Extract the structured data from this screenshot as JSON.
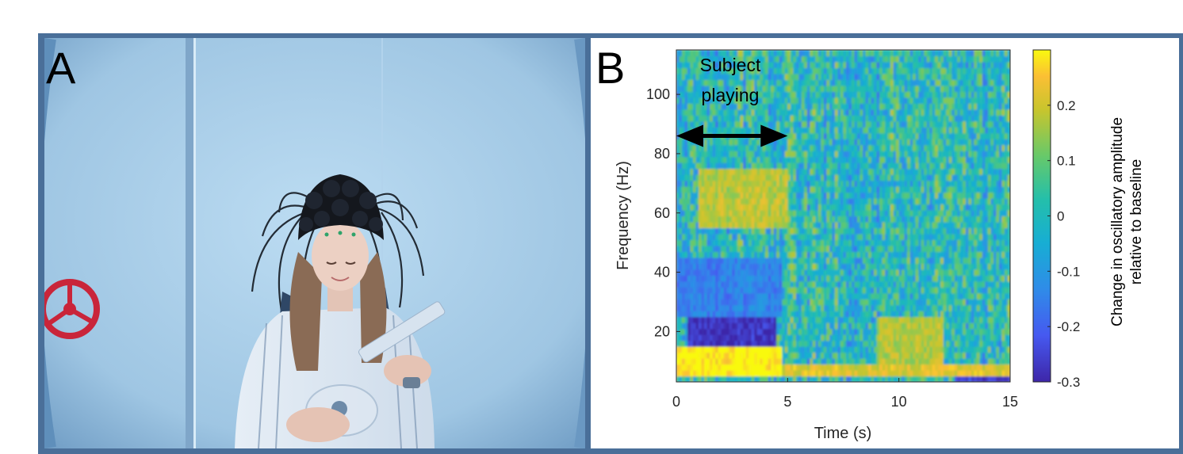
{
  "figure": {
    "panel_a": {
      "letter": "A"
    },
    "panel_b": {
      "letter": "B",
      "annotation": [
        "Subject",
        "playing"
      ]
    }
  },
  "chart_data": {
    "type": "heatmap",
    "title": "",
    "xlabel": "Time (s)",
    "ylabel": "Frequency (Hz)",
    "xlim": [
      0,
      15
    ],
    "ylim": [
      3,
      115
    ],
    "xticks": [
      0,
      5,
      10,
      15
    ],
    "yticks": [
      20,
      40,
      60,
      80,
      100
    ],
    "colormap": "parula",
    "colorbar": {
      "label_lines": [
        "Change in oscillatory amplitude",
        "relative to baseline"
      ],
      "range": [
        -0.3,
        0.3
      ],
      "ticks": [
        0.2,
        0.1,
        0,
        -0.1,
        -0.2,
        -0.3
      ],
      "tick_labels": [
        "0.2",
        "0.1",
        "0",
        "-0.1",
        "-0.2",
        "-0.3"
      ]
    },
    "annotation": {
      "text": "Subject playing",
      "arrow_from_s": 0,
      "arrow_to_s": 5,
      "arrow_at_hz": 86
    },
    "regions": [
      {
        "t0": 0,
        "t1": 4.8,
        "f0": 6,
        "f1": 14,
        "value": 0.3
      },
      {
        "t0": 4.8,
        "t1": 15,
        "f0": 5,
        "f1": 8,
        "value": 0.22
      },
      {
        "t0": 0.5,
        "t1": 4.5,
        "f0": 15,
        "f1": 25,
        "value": -0.28
      },
      {
        "t0": 0,
        "t1": 4.8,
        "f0": 25,
        "f1": 45,
        "value": -0.15
      },
      {
        "t0": 1,
        "t1": 5,
        "f0": 55,
        "f1": 75,
        "value": 0.18
      },
      {
        "t0": 9,
        "t1": 12,
        "f0": 10,
        "f1": 25,
        "value": 0.17
      },
      {
        "t0": 12.5,
        "t1": 15,
        "f0": 3,
        "f1": 4.5,
        "value": -0.25
      }
    ]
  }
}
